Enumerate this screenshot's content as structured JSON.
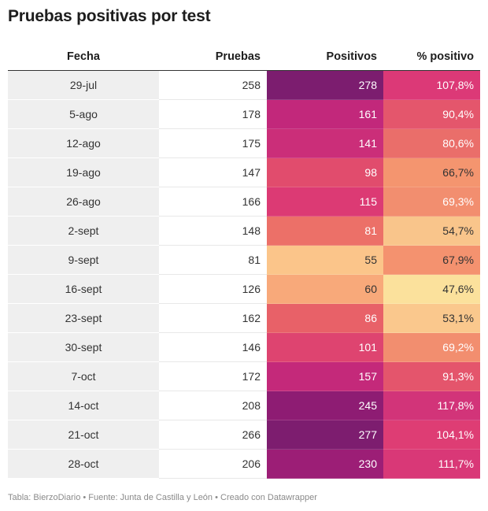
{
  "title": "Pruebas positivas por test",
  "footer": "Tabla: BierzoDiario • Fuente: Junta de Castilla y León • Creado con Datawrapper",
  "chart_data": {
    "type": "table",
    "title": "Pruebas positivas por test",
    "columns": [
      "Fecha",
      "Pruebas",
      "Positivos",
      "% positivo"
    ],
    "rows": [
      {
        "fecha": "29-jul",
        "pruebas": "258",
        "positivos": "278",
        "pct": "107,8%",
        "pos_bg": "#7c1d6f",
        "pos_fg": "#ffffff",
        "pct_bg": "#dc3977",
        "pct_fg": "#ffffff"
      },
      {
        "fecha": "5-ago",
        "pruebas": "178",
        "positivos": "161",
        "pct": "90,4%",
        "pos_bg": "#c2287b",
        "pos_fg": "#ffffff",
        "pct_bg": "#e4566c",
        "pct_fg": "#ffffff"
      },
      {
        "fecha": "12-ago",
        "pruebas": "175",
        "positivos": "141",
        "pct": "80,6%",
        "pos_bg": "#cb2e79",
        "pos_fg": "#ffffff",
        "pct_bg": "#ea6e6a",
        "pct_fg": "#ffffff"
      },
      {
        "fecha": "19-ago",
        "pruebas": "147",
        "positivos": "98",
        "pct": "66,7%",
        "pos_bg": "#e14c6d",
        "pos_fg": "#ffffff",
        "pct_bg": "#f4956f",
        "pct_fg": "#333333"
      },
      {
        "fecha": "26-ago",
        "pruebas": "166",
        "positivos": "115",
        "pct": "69,3%",
        "pos_bg": "#dc3a74",
        "pos_fg": "#ffffff",
        "pct_bg": "#f28e6f",
        "pct_fg": "#ffffff"
      },
      {
        "fecha": "2-sept",
        "pruebas": "148",
        "positivos": "81",
        "pct": "54,7%",
        "pos_bg": "#ec7068",
        "pos_fg": "#ffffff",
        "pct_bg": "#f9c58b",
        "pct_fg": "#333333"
      },
      {
        "fecha": "9-sept",
        "pruebas": "81",
        "positivos": "55",
        "pct": "67,9%",
        "pos_bg": "#fbc58a",
        "pos_fg": "#333333",
        "pct_bg": "#f4926f",
        "pct_fg": "#333333"
      },
      {
        "fecha": "16-sept",
        "pruebas": "126",
        "positivos": "60",
        "pct": "47,6%",
        "pos_bg": "#f8a97a",
        "pos_fg": "#333333",
        "pct_bg": "#fbe19c",
        "pct_fg": "#333333"
      },
      {
        "fecha": "23-sept",
        "pruebas": "162",
        "positivos": "86",
        "pct": "53,1%",
        "pos_bg": "#e86168",
        "pos_fg": "#ffffff",
        "pct_bg": "#fac88d",
        "pct_fg": "#333333"
      },
      {
        "fecha": "30-sept",
        "pruebas": "146",
        "positivos": "101",
        "pct": "69,2%",
        "pos_bg": "#de4470",
        "pos_fg": "#ffffff",
        "pct_bg": "#f28e6f",
        "pct_fg": "#ffffff"
      },
      {
        "fecha": "7-oct",
        "pruebas": "172",
        "positivos": "157",
        "pct": "91,3%",
        "pos_bg": "#c4297a",
        "pos_fg": "#ffffff",
        "pct_bg": "#e4556c",
        "pct_fg": "#ffffff"
      },
      {
        "fecha": "14-oct",
        "pruebas": "208",
        "positivos": "245",
        "pct": "117,8%",
        "pos_bg": "#8e1c73",
        "pos_fg": "#ffffff",
        "pct_bg": "#d23479",
        "pct_fg": "#ffffff"
      },
      {
        "fecha": "21-oct",
        "pruebas": "266",
        "positivos": "277",
        "pct": "104,1%",
        "pos_bg": "#7d1d6f",
        "pos_fg": "#ffffff",
        "pct_bg": "#de3d74",
        "pct_fg": "#ffffff"
      },
      {
        "fecha": "28-oct",
        "pruebas": "206",
        "positivos": "230",
        "pct": "111,7%",
        "pos_bg": "#9c1e76",
        "pos_fg": "#ffffff",
        "pct_bg": "#d93877",
        "pct_fg": "#ffffff"
      }
    ]
  }
}
